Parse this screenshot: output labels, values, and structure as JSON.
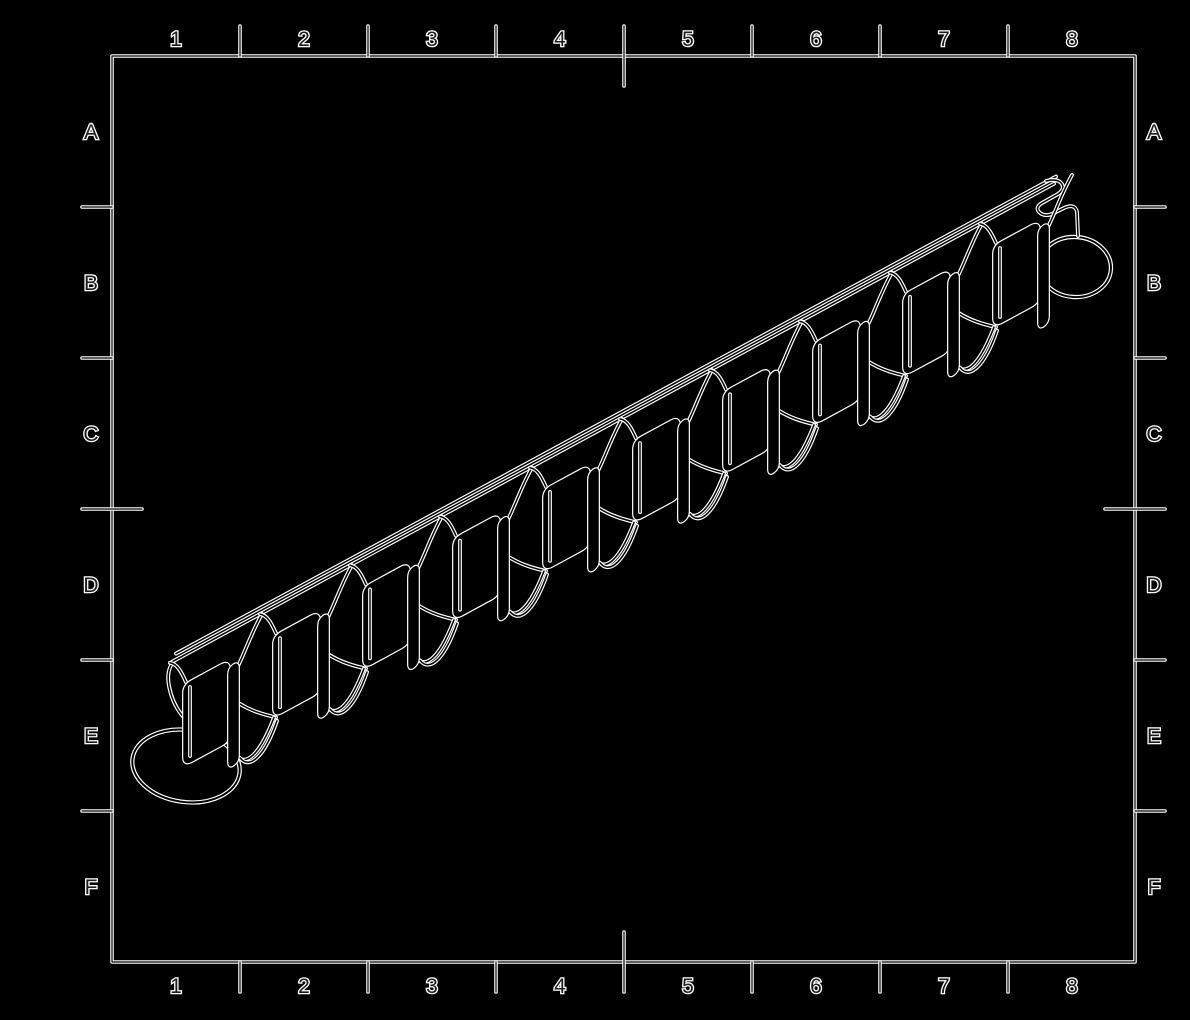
{
  "sheet": {
    "background": "#000000",
    "line_color": "#000000",
    "halo_color": "#ffffff",
    "label_color": "#1c1c1c"
  },
  "grid": {
    "columns": [
      "1",
      "2",
      "3",
      "4",
      "5",
      "6",
      "7",
      "8"
    ],
    "rows": [
      "A",
      "B",
      "C",
      "D",
      "E",
      "F"
    ]
  },
  "part": {
    "description": "Isometric wireframe of a corrugated spring-clip strip with a ring loop at each end",
    "clip_count": 10
  }
}
